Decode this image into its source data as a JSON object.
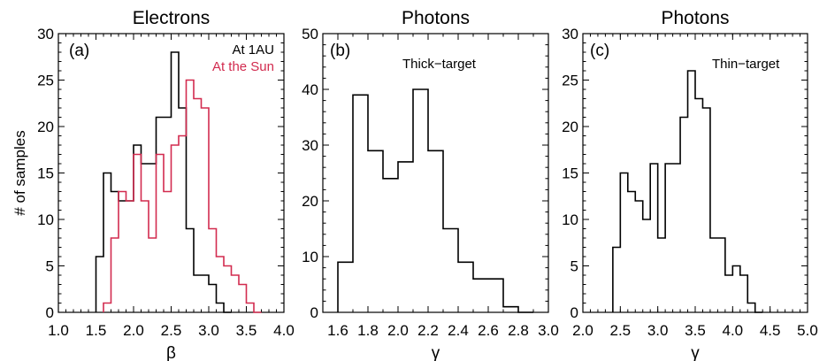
{
  "chart_data": [
    {
      "type": "histogram",
      "panel_label": "(a)",
      "title": "Electrons",
      "xlabel": "β",
      "ylabel": "# of samples",
      "xlim": [
        1.0,
        4.0
      ],
      "ylim": [
        0,
        30
      ],
      "xticks": [
        "1.0",
        "1.5",
        "2.0",
        "2.5",
        "3.0",
        "3.5",
        "4.0"
      ],
      "yticks": [
        "0",
        "5",
        "10",
        "15",
        "20",
        "25",
        "30"
      ],
      "bin_width": 0.1,
      "legend": {
        "placement": "top-right"
      },
      "series": [
        {
          "name": "At 1AU",
          "color": "#000000",
          "x": [
            1.5,
            1.6,
            1.7,
            1.8,
            1.9,
            2.0,
            2.1,
            2.2,
            2.3,
            2.4,
            2.5,
            2.6,
            2.7,
            2.8,
            2.9,
            3.0,
            3.1,
            3.2
          ],
          "values": [
            6,
            15,
            13,
            12,
            12,
            18,
            16,
            16,
            21,
            21,
            28,
            22,
            9,
            4,
            4,
            3,
            1,
            0
          ]
        },
        {
          "name": "At the Sun",
          "color": "#d22b4f",
          "x": [
            1.6,
            1.7,
            1.8,
            1.9,
            2.0,
            2.1,
            2.2,
            2.3,
            2.4,
            2.5,
            2.6,
            2.7,
            2.8,
            2.9,
            3.0,
            3.1,
            3.2,
            3.3,
            3.4,
            3.5,
            3.6
          ],
          "values": [
            1,
            8,
            13,
            12,
            17,
            12,
            8,
            17,
            13,
            18,
            19,
            25,
            23,
            22,
            9,
            6,
            5,
            4,
            3,
            1,
            0
          ]
        }
      ]
    },
    {
      "type": "histogram",
      "panel_label": "(b)",
      "title": "Photons",
      "annotation": "Thick−target",
      "xlabel": "γ",
      "ylabel": "",
      "xlim": [
        1.5,
        3.0
      ],
      "ylim": [
        0,
        50
      ],
      "xticks": [
        "1.6",
        "1.8",
        "2.0",
        "2.2",
        "2.4",
        "2.6",
        "2.8",
        "3.0"
      ],
      "yticks": [
        "0",
        "10",
        "20",
        "30",
        "40",
        "50"
      ],
      "bin_width": 0.1,
      "series": [
        {
          "name": "",
          "color": "#000000",
          "x": [
            1.6,
            1.7,
            1.8,
            1.9,
            2.0,
            2.1,
            2.2,
            2.3,
            2.4,
            2.5,
            2.6,
            2.7,
            2.8
          ],
          "values": [
            9,
            39,
            29,
            24,
            27,
            40,
            29,
            15,
            9,
            6,
            6,
            1,
            0
          ]
        }
      ]
    },
    {
      "type": "histogram",
      "panel_label": "(c)",
      "title": "Photons",
      "annotation": "Thin−target",
      "xlabel": "γ",
      "ylabel": "",
      "xlim": [
        2.0,
        5.0
      ],
      "ylim": [
        0,
        30
      ],
      "xticks": [
        "2.0",
        "2.5",
        "3.0",
        "3.5",
        "4.0",
        "4.5",
        "5.0"
      ],
      "yticks": [
        "0",
        "5",
        "10",
        "15",
        "20",
        "25",
        "30"
      ],
      "bin_width": 0.1,
      "series": [
        {
          "name": "",
          "color": "#000000",
          "x": [
            2.4,
            2.5,
            2.6,
            2.7,
            2.8,
            2.9,
            3.0,
            3.1,
            3.2,
            3.3,
            3.4,
            3.5,
            3.6,
            3.7,
            3.8,
            3.9,
            4.0,
            4.1,
            4.2,
            4.3
          ],
          "values": [
            7,
            15,
            13,
            12,
            10,
            16,
            8,
            16,
            16,
            21,
            26,
            23,
            22,
            8,
            8,
            4,
            5,
            4,
            1,
            0
          ]
        }
      ]
    }
  ]
}
